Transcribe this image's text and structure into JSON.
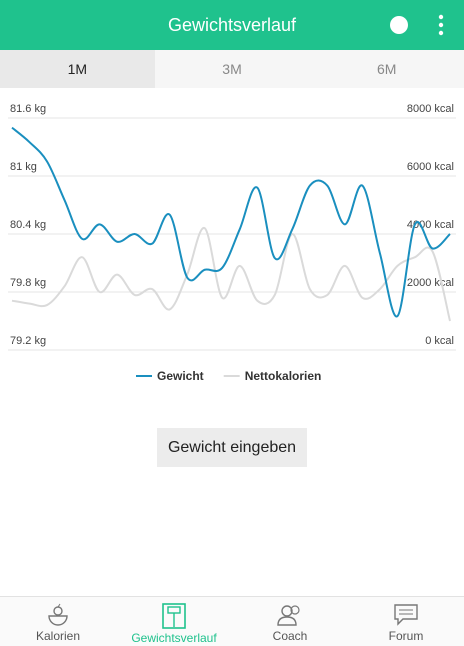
{
  "header": {
    "title": "Gewichtsverlauf"
  },
  "tabs": [
    "1M",
    "3M",
    "6M"
  ],
  "chart_data": {
    "type": "line",
    "categories": [
      null,
      null,
      null,
      null,
      null,
      null,
      null,
      null,
      null,
      null,
      null,
      null,
      null,
      null,
      null,
      null,
      null,
      null,
      null,
      null,
      null,
      null,
      null,
      null,
      null,
      null
    ],
    "series": [
      {
        "name": "Gewicht",
        "color": "#1a8fbf",
        "values": [
          81.5,
          81.35,
          81.15,
          80.75,
          80.35,
          80.5,
          80.32,
          80.4,
          80.3,
          80.6,
          79.95,
          80.03,
          80.05,
          80.45,
          80.88,
          80.15,
          80.45,
          80.9,
          80.9,
          80.5,
          80.9,
          80.2,
          79.55,
          80.5,
          80.25,
          80.4
        ]
      },
      {
        "name": "Nettokalorien",
        "color": "#dadada",
        "axis": "y2",
        "values": [
          1700,
          1600,
          1550,
          2200,
          3200,
          2000,
          2600,
          1900,
          2100,
          1400,
          2600,
          4200,
          1800,
          2900,
          1700,
          1900,
          4000,
          2100,
          1900,
          2900,
          1800,
          2100,
          2900,
          3200,
          3400,
          1000
        ]
      }
    ],
    "ylim": [
      79.2,
      81.6
    ],
    "yticks": [
      {
        "value": 79.2,
        "label": "79.2 kg"
      },
      {
        "value": 79.8,
        "label": "79.8 kg"
      },
      {
        "value": 80.4,
        "label": "80.4 kg"
      },
      {
        "value": 81,
        "label": "81 kg"
      },
      {
        "value": 81.6,
        "label": "81.6 kg"
      }
    ],
    "y2lim": [
      0,
      8000
    ],
    "y2ticks": [
      {
        "value": 0,
        "label": "0 kcal"
      },
      {
        "value": 2000,
        "label": "2000 kcal"
      },
      {
        "value": 4000,
        "label": "4000 kcal"
      },
      {
        "value": 6000,
        "label": "6000 kcal"
      },
      {
        "value": 8000,
        "label": "8000 kcal"
      }
    ],
    "grid": true
  },
  "button": {
    "label": "Gewicht eingeben"
  },
  "nav": [
    {
      "label": "Kalorien"
    },
    {
      "label": "Gewichtsverlauf",
      "active": true
    },
    {
      "label": "Coach"
    },
    {
      "label": "Forum"
    }
  ]
}
